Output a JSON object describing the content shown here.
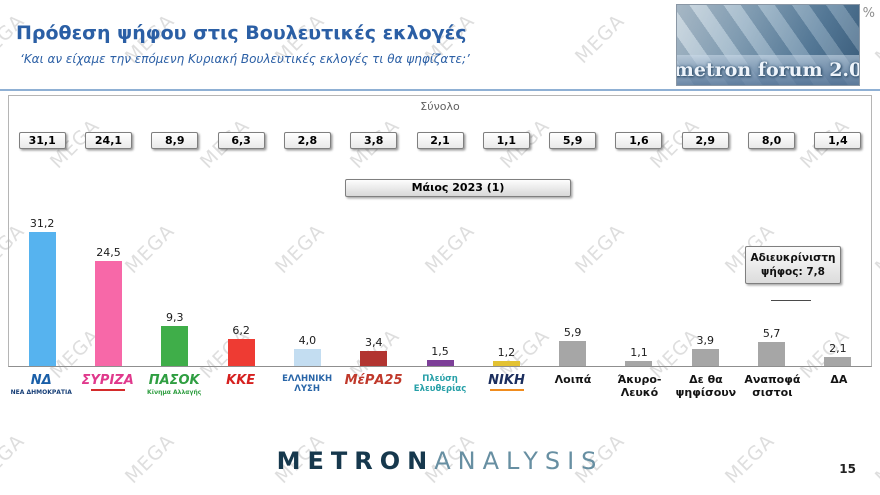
{
  "header": {
    "title": "Πρόθεση ψήφου στις Βουλευτικές εκλογές",
    "subtitle": "‘Και αν είχαμε την επόμενη Κυριακή Βουλευτικές εκλογές τι θα ψηφίζατε;’",
    "logo_text": "metron forum 2.0",
    "percent_symbol": "%"
  },
  "chart_data": {
    "type": "bar",
    "title": "Πρόθεση ψήφου στις Βουλευτικές εκλογές",
    "group_label": "Σύνολο",
    "period_label": "Μάιος 2023 (1)",
    "ylim": [
      0,
      35
    ],
    "categories": [
      "ΝΔ",
      "ΣΥΡΙΖΑ",
      "ΠΑΣΟΚ",
      "ΚΚΕ",
      "ΕΛΛΗΝΙΚΗ ΛΥΣΗ",
      "ΜέΡΑ25",
      "Πλεύση Ελευθερίας",
      "ΝΙΚΗ",
      "Λοιπά",
      "Άκυρο-Λευκό",
      "Δε θα ψηφίσουν",
      "Αναποφάσιστοι",
      "ΔΑ"
    ],
    "top_row_values": [
      "31,1",
      "24,1",
      "8,9",
      "6,3",
      "2,8",
      "3,8",
      "2,1",
      "1,1",
      "5,9",
      "1,6",
      "2,9",
      "8,0",
      "1,4"
    ],
    "bars": {
      "labels": [
        "31,2",
        "24,5",
        "9,3",
        "6,2",
        "4,0",
        "3,4",
        "1,5",
        "1,2",
        "5,9",
        "1,1",
        "3,9",
        "5,7",
        "2,1"
      ],
      "values": [
        31.2,
        24.5,
        9.3,
        6.2,
        4.0,
        3.4,
        1.5,
        1.2,
        5.9,
        1.1,
        3.9,
        5.7,
        2.1
      ],
      "colors": [
        "#56b3ef",
        "#f768a8",
        "#3fae49",
        "#ee3b33",
        "#c3ddf1",
        "#b23430",
        "#7d3f98",
        "#e3c233",
        "#a6a6a6",
        "#a6a6a6",
        "#a6a6a6",
        "#a6a6a6",
        "#a6a6a6"
      ]
    },
    "undecided_note": {
      "line1": "Αδιευκρίνιστη",
      "line2": "ψήφος: 7,8"
    },
    "parties": [
      {
        "id": "nd",
        "lines": [
          "ΝΔ"
        ],
        "caption": "ΝΕΑ ΔΗΜΟΚΡΑΤΙΑ",
        "color": "#1a5fa8",
        "captionColor": "#173f77",
        "style": "logo"
      },
      {
        "id": "syriza",
        "lines": [
          "ΣΥΡΙΖΑ"
        ],
        "color": "#e0398c",
        "underline": "#d42b2b",
        "style": "logo"
      },
      {
        "id": "pasok",
        "lines": [
          "ΠΑΣΟΚ"
        ],
        "caption": "Κίνημα Αλλαγής",
        "color": "#2f9e41",
        "captionColor": "#2f9e41",
        "style": "logo"
      },
      {
        "id": "kke",
        "lines": [
          "ΚΚΕ"
        ],
        "color": "#d6201f",
        "style": "logo"
      },
      {
        "id": "elliniki-lysi",
        "lines": [
          "ΕΛΛΗΝΙΚΗ",
          "ΛΥΣΗ"
        ],
        "color": "#2a66a8",
        "style": "logo-small"
      },
      {
        "id": "mera25",
        "lines": [
          "ΜέΡΑ25"
        ],
        "color": "#c0392b",
        "style": "logo"
      },
      {
        "id": "plefsi-eleftherias",
        "lines": [
          "Πλεύση",
          "Ελευθερίας"
        ],
        "color": "#27a0a8",
        "style": "logo-small"
      },
      {
        "id": "niki",
        "lines": [
          "ΝΙΚΗ"
        ],
        "color": "#1b2e5e",
        "underline": "#f08c1e",
        "style": "logo"
      },
      {
        "id": "loipa",
        "lines": [
          "Λοιπά"
        ],
        "style": "text"
      },
      {
        "id": "akyro-leyko",
        "lines": [
          "Άκυρο-",
          "Λευκό"
        ],
        "style": "text"
      },
      {
        "id": "de-tha-psifisoun",
        "lines": [
          "Δε θα",
          "ψηφίσουν"
        ],
        "style": "text"
      },
      {
        "id": "anapofasistoi",
        "lines": [
          "Αναποφά",
          "σιστοι"
        ],
        "style": "text"
      },
      {
        "id": "da",
        "lines": [
          "ΔΑ"
        ],
        "style": "text"
      }
    ]
  },
  "footer": {
    "brand_metron": "METRON",
    "brand_analysis": "ANALYSIS",
    "page_number": "15"
  },
  "watermark": {
    "text": "MEGA"
  }
}
